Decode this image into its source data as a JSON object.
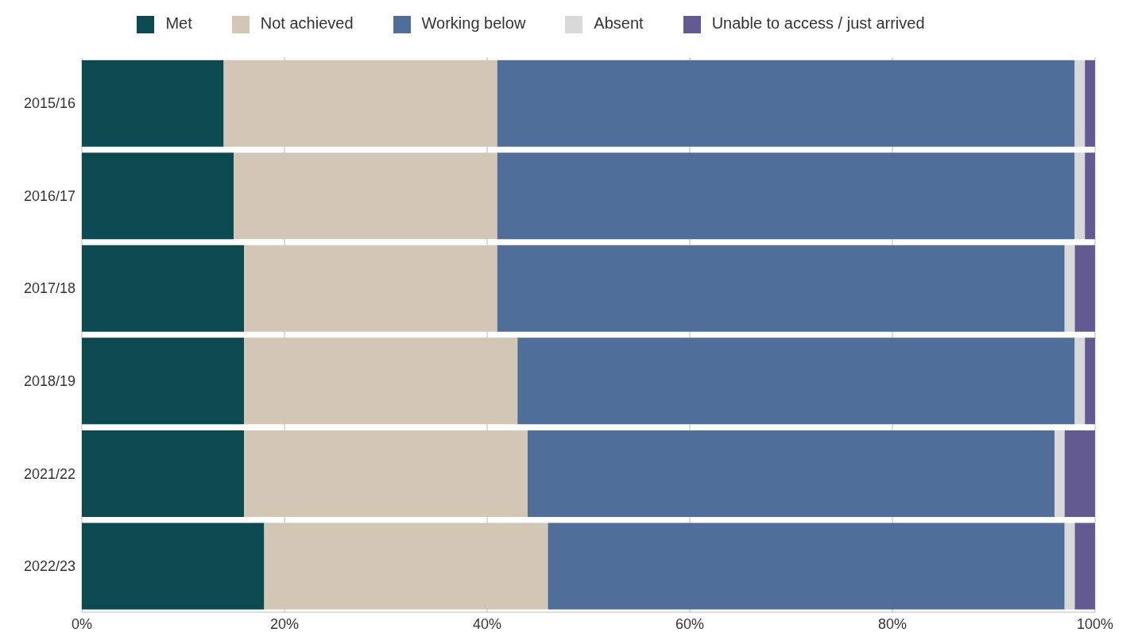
{
  "chart_data": {
    "type": "bar",
    "orientation": "horizontal",
    "stacked": true,
    "categories": [
      "2015/16",
      "2016/17",
      "2017/18",
      "2018/19",
      "2021/22",
      "2022/23"
    ],
    "series": [
      {
        "name": "Met",
        "color": "#0b4a50",
        "values": [
          14,
          15,
          16,
          16,
          16,
          18
        ]
      },
      {
        "name": "Not achieved",
        "color": "#d2c6b5",
        "values": [
          27,
          26,
          25,
          27,
          28,
          28
        ]
      },
      {
        "name": "Working below",
        "color": "#4f6e9a",
        "values": [
          57,
          57,
          56,
          55,
          52,
          51
        ]
      },
      {
        "name": "Absent",
        "color": "#d9d9d9",
        "values": [
          1,
          1,
          1,
          1,
          1,
          1
        ]
      },
      {
        "name": "Unable to access / just arrived",
        "color": "#645a92",
        "values": [
          1,
          1,
          2,
          1,
          3,
          2
        ]
      }
    ],
    "xlim": [
      0,
      100
    ],
    "xticks": [
      {
        "value": 0,
        "label": "0%"
      },
      {
        "value": 20,
        "label": "20%"
      },
      {
        "value": 40,
        "label": "40%"
      },
      {
        "value": 60,
        "label": "60%"
      },
      {
        "value": 80,
        "label": "80%"
      },
      {
        "value": 100,
        "label": "100%"
      }
    ],
    "grid": "x",
    "legend": "top"
  }
}
